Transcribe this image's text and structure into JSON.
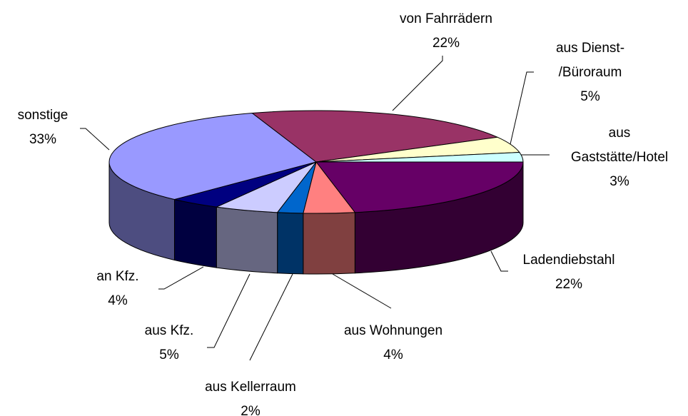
{
  "chart_data": {
    "type": "pie3d",
    "categories": [
      [
        "Ladendiebstahl"
      ],
      [
        "aus Wohnungen"
      ],
      [
        "aus Kellerraum"
      ],
      [
        "aus Kfz."
      ],
      [
        "an Kfz."
      ],
      [
        "sonstige"
      ],
      [
        "von Fahrrädern"
      ],
      [
        "aus Dienst-",
        "/Büroraum"
      ],
      [
        "aus",
        "Gaststätte/Hotel"
      ]
    ],
    "values": [
      22,
      4,
      2,
      5,
      4,
      33,
      22,
      5,
      3
    ],
    "value_labels": [
      "22%",
      "4%",
      "2%",
      "5%",
      "4%",
      "33%",
      "22%",
      "5%",
      "3%"
    ],
    "colors": [
      "#660066",
      "#ff8080",
      "#0066cc",
      "#ccccff",
      "#000080",
      "#9999ff",
      "#993366",
      "#ffffcc",
      "#ccffff"
    ]
  }
}
